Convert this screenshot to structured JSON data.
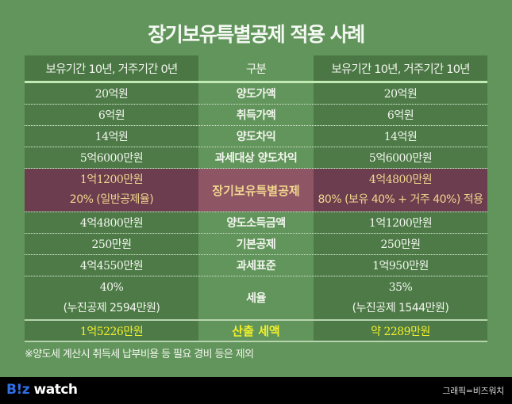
{
  "title": "장기보유특별공제 적용 사례",
  "table": {
    "headers": {
      "left": "보유기간 10년, 거주기간 0년",
      "middle": "구분",
      "right": "보유기간 10년, 거주기간 10년"
    },
    "rows": [
      {
        "label": "양도가액",
        "left": "20억원",
        "right": "20억원"
      },
      {
        "label": "취득가액",
        "left": "6억원",
        "right": "6억원"
      },
      {
        "label": "양도차익",
        "left": "14억원",
        "right": "14억원"
      },
      {
        "label": "과세대상 양도차익",
        "left": "5억6000만원",
        "right": "5억6000만원"
      },
      {
        "label": "장기보유특별공제",
        "left": "1억1200만원",
        "left_sub": "20% (일반공제율)",
        "right": "4억4800만원",
        "right_sub": "80% (보유 40% + 거주 40%) 적용",
        "highlight": true
      },
      {
        "label": "양도소득금액",
        "left": "4억4800만원",
        "right": "1억1200만원"
      },
      {
        "label": "기본공제",
        "left": "250만원",
        "right": "250만원"
      },
      {
        "label": "과세표준",
        "left": "4억4550만원",
        "right": "1억950만원"
      },
      {
        "label": "세율",
        "left": "40%",
        "left_sub": "(누진공제 2594만원)",
        "right": "35%",
        "right_sub": "(누진공제 1544만원)"
      },
      {
        "label": "산출 세액",
        "left": "1억5226만원",
        "right": "약 2289만원",
        "result": true
      }
    ]
  },
  "note": "※양도세 계산시 취득세 납부비용 등 필요 경비 등은 제외",
  "footer": {
    "logo_b": "B!z",
    "logo_w": " watch",
    "credit": "그래픽=비즈워치"
  },
  "colors": {
    "background": "#62955c",
    "side_column": "#4d7a47",
    "highlight_side": "#6c3d4e",
    "highlight_middle": "#8e5565",
    "highlight_text": "#f0d58e",
    "result_text": "#f3f02a",
    "header_line": "#c2eab3",
    "logo_blue": "#2f6fe8"
  }
}
